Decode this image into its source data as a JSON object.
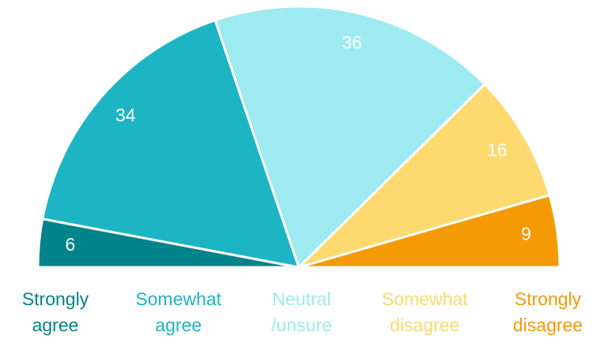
{
  "chart_data": {
    "type": "pie",
    "semicircle": true,
    "categories": [
      "Strongly agree",
      "Somewhat agree",
      "Neutral /unsure",
      "Somewhat disagree",
      "Strongly disagree"
    ],
    "values": [
      6,
      34,
      36,
      16,
      9
    ],
    "colors": [
      "#00838a",
      "#1db4c4",
      "#9deaf0",
      "#fdd96f",
      "#f39a05"
    ]
  }
}
